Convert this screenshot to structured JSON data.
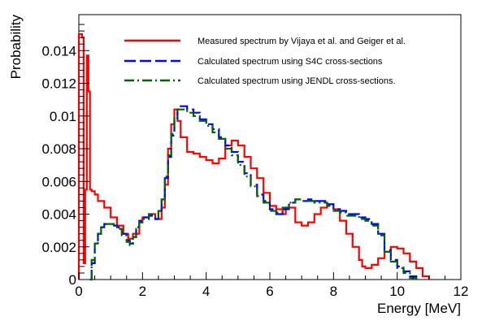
{
  "chart_data": {
    "type": "line",
    "style": "step",
    "xlabel": "Energy [MeV]",
    "ylabel": "Probability",
    "xlim": [
      0,
      12
    ],
    "ylim": [
      0,
      0.0162
    ],
    "x_ticks": [
      "0",
      "2",
      "4",
      "6",
      "8",
      "10",
      "12"
    ],
    "x_tick_values": [
      0,
      2,
      4,
      6,
      8,
      10,
      12
    ],
    "y_ticks": [
      "0",
      "0.002",
      "0.004",
      "0.006",
      "0.008",
      "0.01",
      "0.012",
      "0.014"
    ],
    "y_tick_values": [
      0,
      0.002,
      0.004,
      0.006,
      0.008,
      0.01,
      0.012,
      0.014
    ],
    "legend_position": "top-right",
    "grid": false,
    "series": [
      {
        "name": "Measured spectrum by Vijaya et al. and Geiger et al.",
        "color": "#ff0000",
        "dash": "solid",
        "points": [
          [
            0,
            0
          ],
          [
            0,
            0.015
          ],
          [
            0.1,
            0.0148
          ],
          [
            0.15,
            0.001
          ],
          [
            0.2,
            0.0055
          ],
          [
            0.25,
            0.0137
          ],
          [
            0.3,
            0.0115
          ],
          [
            0.35,
            0.0055
          ],
          [
            0.4,
            0.0054
          ],
          [
            0.5,
            0.0052
          ],
          [
            0.6,
            0.0048
          ],
          [
            0.8,
            0.0044
          ],
          [
            1.0,
            0.0038
          ],
          [
            1.2,
            0.0033
          ],
          [
            1.4,
            0.0028
          ],
          [
            1.55,
            0.0025
          ],
          [
            1.7,
            0.0028
          ],
          [
            1.9,
            0.0035
          ],
          [
            2.0,
            0.0038
          ],
          [
            2.2,
            0.004
          ],
          [
            2.4,
            0.0037
          ],
          [
            2.6,
            0.0044
          ],
          [
            2.7,
            0.0058
          ],
          [
            2.8,
            0.008
          ],
          [
            2.9,
            0.0095
          ],
          [
            3.0,
            0.0104
          ],
          [
            3.1,
            0.0097
          ],
          [
            3.2,
            0.0087
          ],
          [
            3.4,
            0.0078
          ],
          [
            3.6,
            0.0077
          ],
          [
            3.8,
            0.0075
          ],
          [
            4.0,
            0.0073
          ],
          [
            4.2,
            0.0071
          ],
          [
            4.4,
            0.0074
          ],
          [
            4.6,
            0.0082
          ],
          [
            4.8,
            0.0085
          ],
          [
            5.0,
            0.0082
          ],
          [
            5.2,
            0.0075
          ],
          [
            5.4,
            0.0068
          ],
          [
            5.6,
            0.0062
          ],
          [
            5.8,
            0.0053
          ],
          [
            6.0,
            0.0045
          ],
          [
            6.2,
            0.0043
          ],
          [
            6.4,
            0.004
          ],
          [
            6.5,
            0.0044
          ],
          [
            6.6,
            0.0044
          ],
          [
            6.8,
            0.0035
          ],
          [
            7.0,
            0.0033
          ],
          [
            7.2,
            0.0035
          ],
          [
            7.4,
            0.004
          ],
          [
            7.6,
            0.0044
          ],
          [
            7.8,
            0.0046
          ],
          [
            8.0,
            0.0043
          ],
          [
            8.2,
            0.0036
          ],
          [
            8.4,
            0.0028
          ],
          [
            8.6,
            0.002
          ],
          [
            8.8,
            0.0012
          ],
          [
            8.9,
            0.0008
          ],
          [
            9.0,
            0.0007
          ],
          [
            9.2,
            0.0009
          ],
          [
            9.4,
            0.0013
          ],
          [
            9.6,
            0.0017
          ],
          [
            9.8,
            0.002
          ],
          [
            10.0,
            0.0019
          ],
          [
            10.2,
            0.0016
          ],
          [
            10.4,
            0.0011
          ],
          [
            10.6,
            0.0007
          ],
          [
            10.8,
            0.0002
          ],
          [
            11.0,
            0.0
          ]
        ]
      },
      {
        "name": "Calculated spectrum using S4C cross-sections",
        "color": "#0000ff",
        "dash": "long-dash",
        "points": [
          [
            0.35,
            0
          ],
          [
            0.4,
            0.001
          ],
          [
            0.5,
            0.0022
          ],
          [
            0.6,
            0.0028
          ],
          [
            0.7,
            0.0032
          ],
          [
            0.8,
            0.0034
          ],
          [
            1.0,
            0.0034
          ],
          [
            1.1,
            0.0033
          ],
          [
            1.2,
            0.0032
          ],
          [
            1.35,
            0.0028
          ],
          [
            1.5,
            0.0024
          ],
          [
            1.6,
            0.0022
          ],
          [
            1.7,
            0.0026
          ],
          [
            1.8,
            0.0032
          ],
          [
            1.9,
            0.0036
          ],
          [
            2.0,
            0.0038
          ],
          [
            2.2,
            0.0039
          ],
          [
            2.4,
            0.0037
          ],
          [
            2.5,
            0.0041
          ],
          [
            2.6,
            0.0048
          ],
          [
            2.7,
            0.0062
          ],
          [
            2.8,
            0.0075
          ],
          [
            2.9,
            0.0088
          ],
          [
            3.0,
            0.0097
          ],
          [
            3.1,
            0.0104
          ],
          [
            3.2,
            0.0106
          ],
          [
            3.4,
            0.0104
          ],
          [
            3.6,
            0.0102
          ],
          [
            3.8,
            0.0098
          ],
          [
            4.0,
            0.0095
          ],
          [
            4.2,
            0.0092
          ],
          [
            4.4,
            0.0087
          ],
          [
            4.6,
            0.0082
          ],
          [
            4.8,
            0.0078
          ],
          [
            5.0,
            0.0072
          ],
          [
            5.2,
            0.0065
          ],
          [
            5.4,
            0.0058
          ],
          [
            5.6,
            0.0052
          ],
          [
            5.8,
            0.0048
          ],
          [
            6.0,
            0.0043
          ],
          [
            6.2,
            0.004
          ],
          [
            6.4,
            0.0043
          ],
          [
            6.6,
            0.0047
          ],
          [
            6.8,
            0.0049
          ],
          [
            7.0,
            0.0048
          ],
          [
            7.2,
            0.0049
          ],
          [
            7.4,
            0.0048
          ],
          [
            7.6,
            0.0048
          ],
          [
            7.8,
            0.0046
          ],
          [
            8.0,
            0.0043
          ],
          [
            8.2,
            0.0042
          ],
          [
            8.4,
            0.004
          ],
          [
            8.6,
            0.004
          ],
          [
            8.8,
            0.0038
          ],
          [
            9.0,
            0.0037
          ],
          [
            9.2,
            0.0034
          ],
          [
            9.4,
            0.0028
          ],
          [
            9.6,
            0.0018
          ],
          [
            9.8,
            0.0012
          ],
          [
            10.0,
            0.0008
          ],
          [
            10.2,
            0.0005
          ],
          [
            10.4,
            0.0002
          ],
          [
            10.6,
            0
          ]
        ]
      },
      {
        "name": "Calculated spectrum using JENDL cross-sections.",
        "color": "#006400",
        "dash": "dash-dot",
        "points": [
          [
            0.35,
            0
          ],
          [
            0.4,
            0.0012
          ],
          [
            0.5,
            0.0022
          ],
          [
            0.6,
            0.0028
          ],
          [
            0.7,
            0.0032
          ],
          [
            0.8,
            0.0034
          ],
          [
            1.0,
            0.0034
          ],
          [
            1.1,
            0.0033
          ],
          [
            1.2,
            0.0031
          ],
          [
            1.35,
            0.0027
          ],
          [
            1.5,
            0.0023
          ],
          [
            1.6,
            0.0021
          ],
          [
            1.7,
            0.0026
          ],
          [
            1.8,
            0.0031
          ],
          [
            1.9,
            0.0035
          ],
          [
            2.0,
            0.0037
          ],
          [
            2.2,
            0.004
          ],
          [
            2.4,
            0.0038
          ],
          [
            2.5,
            0.0042
          ],
          [
            2.6,
            0.0049
          ],
          [
            2.7,
            0.0063
          ],
          [
            2.8,
            0.0076
          ],
          [
            2.9,
            0.0089
          ],
          [
            3.0,
            0.0099
          ],
          [
            3.1,
            0.0104
          ],
          [
            3.2,
            0.0104
          ],
          [
            3.4,
            0.0102
          ],
          [
            3.6,
            0.01
          ],
          [
            3.8,
            0.0097
          ],
          [
            4.0,
            0.0094
          ],
          [
            4.2,
            0.009
          ],
          [
            4.4,
            0.0086
          ],
          [
            4.6,
            0.008
          ],
          [
            4.8,
            0.0076
          ],
          [
            5.0,
            0.007
          ],
          [
            5.2,
            0.0063
          ],
          [
            5.4,
            0.0057
          ],
          [
            5.6,
            0.0051
          ],
          [
            5.8,
            0.0047
          ],
          [
            6.0,
            0.0042
          ],
          [
            6.2,
            0.0041
          ],
          [
            6.4,
            0.0044
          ],
          [
            6.6,
            0.0047
          ],
          [
            6.8,
            0.0049
          ],
          [
            7.0,
            0.0048
          ],
          [
            7.2,
            0.0048
          ],
          [
            7.4,
            0.0047
          ],
          [
            7.6,
            0.0047
          ],
          [
            7.8,
            0.0045
          ],
          [
            8.0,
            0.0042
          ],
          [
            8.2,
            0.0041
          ],
          [
            8.4,
            0.0039
          ],
          [
            8.6,
            0.0039
          ],
          [
            8.8,
            0.0037
          ],
          [
            9.0,
            0.0036
          ],
          [
            9.2,
            0.0033
          ],
          [
            9.4,
            0.0027
          ],
          [
            9.6,
            0.0017
          ],
          [
            9.8,
            0.0011
          ],
          [
            10.0,
            0.0007
          ],
          [
            10.2,
            0.0004
          ],
          [
            10.4,
            0.0001
          ],
          [
            10.6,
            0
          ]
        ]
      }
    ]
  }
}
